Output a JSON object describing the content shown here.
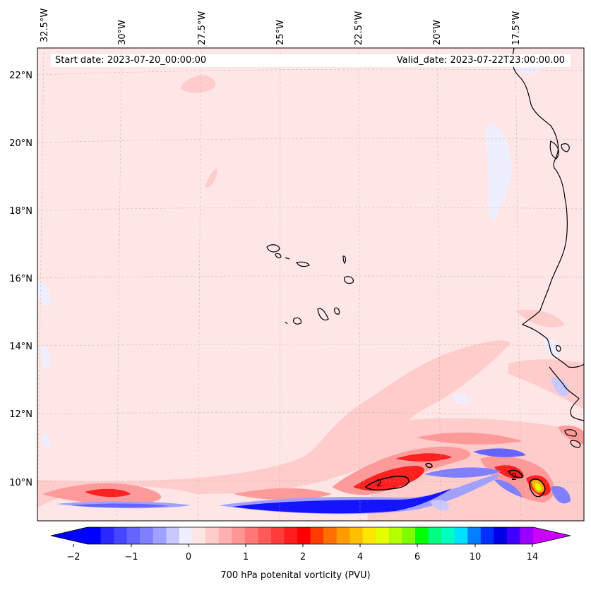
{
  "header": {
    "start_date": "Start date: 2023-07-20_00:00:00",
    "valid_date": "Valid_date: 2023-07-22T23:00:00.00"
  },
  "axes": {
    "lon_labels": [
      "32.5°W",
      "30°W",
      "27.5°W",
      "25°W",
      "22.5°W",
      "20°W",
      "17.5°W"
    ],
    "lat_labels": [
      "22°N",
      "20°N",
      "18°N",
      "16°N",
      "14°N",
      "12°N",
      "10°N"
    ],
    "contour_label": "2"
  },
  "colorbar": {
    "title": "700 hPa potenital vorticity (PVU)",
    "tick_labels": [
      "−2",
      "−1",
      "0",
      "1",
      "2",
      "4",
      "6",
      "10",
      "14"
    ],
    "colors": [
      "#0000ff",
      "#2828ff",
      "#4646ff",
      "#6464ff",
      "#8080ff",
      "#a0a0ff",
      "#c8c8ff",
      "#eeeeff",
      "#ffe6e6",
      "#ffcccc",
      "#ffb0b0",
      "#ff9696",
      "#ff7878",
      "#ff5a5a",
      "#ff3c3c",
      "#ff1e1e",
      "#ff0000",
      "#ff3c00",
      "#ff7000",
      "#ff9a00",
      "#ffbe00",
      "#ffe600",
      "#e6ff00",
      "#b4ff00",
      "#7cff00",
      "#00ff00",
      "#00ff80",
      "#00ffc0",
      "#00e0ff",
      "#0080ff",
      "#0030ff",
      "#0000e6",
      "#4000ff",
      "#9a00ff"
    ],
    "under_color": "#0000ff",
    "over_color": "#cc00ff"
  },
  "colors": {
    "background_pv": "#ffe6e6",
    "coastline": "#000000"
  }
}
